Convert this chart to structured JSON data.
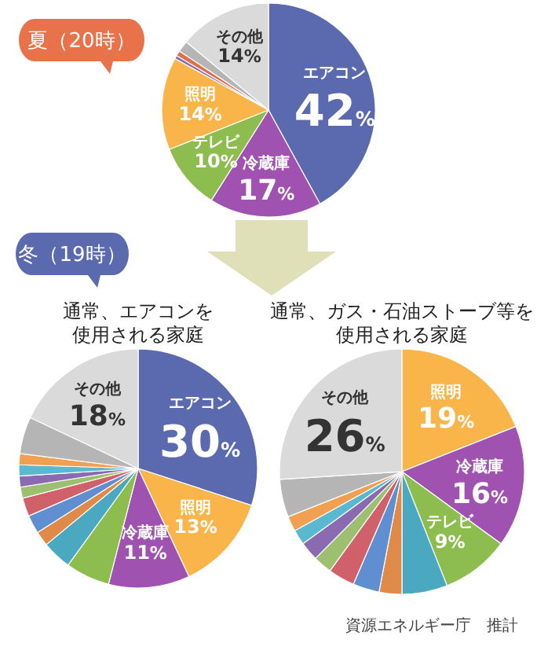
{
  "chart_data": [
    {
      "type": "pie",
      "title": "夏（20時）",
      "categories": [
        "エアコン",
        "冷蔵庫",
        "テレビ",
        "照明",
        null,
        null,
        null,
        "その他"
      ],
      "values": [
        42,
        17,
        10,
        14,
        0.5,
        0.8,
        1.7,
        14
      ],
      "value_labels": [
        "42%",
        "17%",
        "10%",
        "14%",
        null,
        null,
        null,
        "14%"
      ],
      "colors": [
        "#5b6aae",
        "#a052b0",
        "#8cbd4e",
        "#f9b54a",
        "#8a6ab0",
        "#e0704a",
        "#b5b5b5",
        "#dadada"
      ]
    },
    {
      "type": "pie",
      "title": "冬（19時）",
      "subtitle": "通常、エアコンを使用される家庭",
      "categories": [
        "エアコン",
        "照明",
        "冷蔵庫",
        null,
        null,
        null,
        null,
        null,
        null,
        null,
        null,
        null,
        null,
        "その他"
      ],
      "values": [
        30,
        13,
        11,
        6,
        4,
        2,
        2.5,
        2.5,
        1.5,
        1.5,
        1.5,
        1.5,
        5,
        18
      ],
      "value_labels": [
        "30%",
        "13%",
        "11%",
        null,
        null,
        null,
        null,
        null,
        null,
        null,
        null,
        null,
        null,
        "18%"
      ],
      "colors": [
        "#5b6aae",
        "#f9b54a",
        "#a052b0",
        "#8cbd4e",
        "#4aa8c0",
        "#e08a4a",
        "#5f8fd0",
        "#d0606a",
        "#9cc070",
        "#8a6ab0",
        "#5ab8d0",
        "#f0a050",
        "#b5b5b5",
        "#dadada"
      ]
    },
    {
      "type": "pie",
      "title": "通常、ガス・石油ストーブ等を使用される家庭",
      "categories": [
        "照明",
        "冷蔵庫",
        "テレビ",
        null,
        null,
        null,
        null,
        null,
        null,
        null,
        null,
        null,
        "その他"
      ],
      "values": [
        19,
        16,
        9,
        6,
        3,
        3.5,
        3.5,
        2.5,
        2.5,
        2,
        2,
        5,
        26
      ],
      "value_labels": [
        "19%",
        "16%",
        "9%",
        null,
        null,
        null,
        null,
        null,
        null,
        null,
        null,
        null,
        "26%"
      ],
      "colors": [
        "#f9b54a",
        "#a052b0",
        "#8cbd4e",
        "#4aa8c0",
        "#e08a4a",
        "#5f8fd0",
        "#d0606a",
        "#9cc070",
        "#8a6ab0",
        "#5ab8d0",
        "#f0a050",
        "#b5b5b5",
        "#dadada"
      ],
      "annotations": [
        "資源エネルギー庁　推計"
      ]
    }
  ]
}
